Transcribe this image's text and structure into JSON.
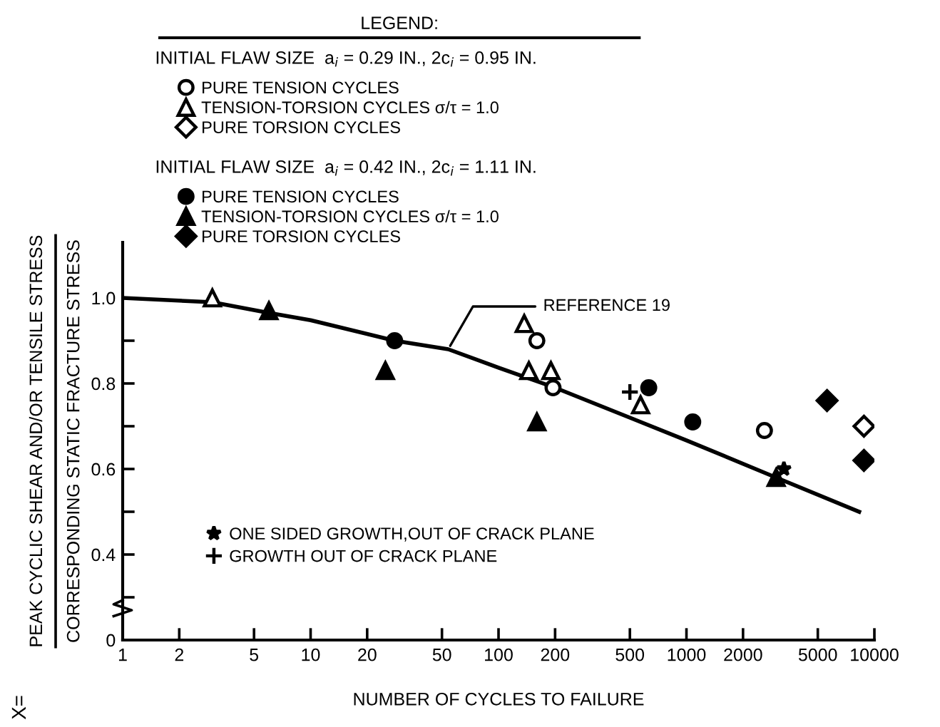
{
  "chart_data": {
    "type": "scatter",
    "legend_title": "LEGEND:",
    "xlabel": "NUMBER OF CYCLES TO FAILURE",
    "ylabel": "PEAK CYCLIC SHEAR AND/OR TENSILE STRESS\nCORRESPONDING STATIC FRACTURE STRESS",
    "annotations": [
      "X=",
      "INITIAL FLAW SIZE  a$_{i}$ = 0.29 IN., 2c$_{i}$ = 0.95 IN.",
      "INITIAL FLAW SIZE  a$_{i}$ = 0.42 IN., 2c$_{i}$ = 1.11 IN.",
      {
        "text": "REFERENCE 19",
        "x": 54,
        "y": 0.88
      }
    ],
    "log": "x",
    "xlim": [
      1,
      10000
    ],
    "xticks": [
      1,
      2,
      5,
      10,
      20,
      50,
      100,
      200,
      500,
      1000,
      2000,
      5000,
      10000
    ],
    "ylim": [
      0.2,
      1.13
    ],
    "yticks": [
      {
        "value": 0.2,
        "label": "0"
      },
      {
        "value": 0.3,
        "label": null
      },
      0.4,
      {
        "value": 0.5,
        "label": null
      },
      0.6,
      {
        "value": 0.7,
        "label": null
      },
      0.8,
      {
        "value": 0.9,
        "label": null
      },
      {
        "value": 1.0,
        "label": "1.0"
      }
    ],
    "grid": false,
    "legend": "top",
    "series": [
      {
        "name": "PURE TENSION CYCLES",
        "marker": "circle",
        "color": "#ffffff",
        "x": [
          160,
          195,
          2600
        ],
        "values": [
          0.9,
          0.79,
          0.69
        ]
      },
      {
        "name": "TENSION-TORSION CYCLES σ/τ = 1.0",
        "marker": "triangle",
        "color": "#ffffff",
        "x": [
          3,
          137,
          145,
          190,
          570
        ],
        "values": [
          1.0,
          0.94,
          0.83,
          0.83,
          0.75
        ]
      },
      {
        "name": "PURE TORSION CYCLES",
        "marker": "diamond",
        "color": "#ffffff",
        "x": [
          8800
        ],
        "values": [
          0.7
        ]
      },
      {
        "name": "PURE TENSION CYCLES",
        "marker": "circle",
        "color": "#000000",
        "x": [
          28,
          630,
          1080
        ],
        "values": [
          0.9,
          0.79,
          0.71
        ]
      },
      {
        "name": "TENSION-TORSION CYCLES σ/τ = 1.0",
        "marker": "triangle",
        "color": "#000000",
        "x": [
          6,
          25,
          160,
          3000
        ],
        "values": [
          0.97,
          0.83,
          0.71,
          0.58
        ]
      },
      {
        "name": "PURE TORSION CYCLES",
        "marker": "diamond",
        "color": "#000000",
        "x": [
          5600,
          8800
        ],
        "values": [
          0.76,
          0.62
        ]
      },
      {
        "name": "ONE SIDED GROWTH,OUT OF CRACK PLANE",
        "marker": "star",
        "color": "#000000",
        "x": [
          3300
        ],
        "values": [
          0.6
        ]
      },
      {
        "name": "GROWTH OUT OF CRACK PLANE",
        "marker": "cross",
        "color": "#000000",
        "x": [
          500
        ],
        "values": [
          0.78
        ]
      },
      {
        "type": "line",
        "marker": "none",
        "color": "#000000",
        "x": [
          1,
          3,
          6,
          10,
          28,
          54,
          100,
          200,
          500,
          1000,
          3000,
          8300
        ],
        "values": [
          1.0,
          0.99,
          0.965,
          0.948,
          0.9,
          0.88,
          0.837,
          0.79,
          0.72,
          0.667,
          0.58,
          0.5
        ]
      }
    ]
  }
}
